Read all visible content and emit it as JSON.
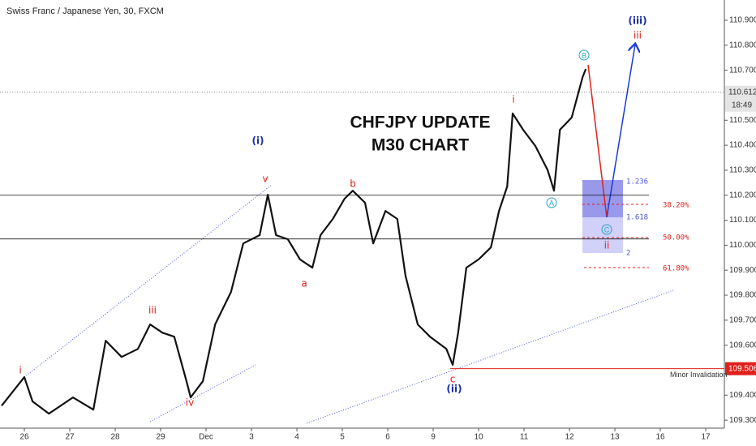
{
  "chart_data": {
    "type": "line",
    "title": "Swiss Franc / Japanese Yen, 30, FXCM",
    "headline": [
      "CHFJPY UPDATE",
      "M30 CHART"
    ],
    "color": "#111111",
    "x": [
      -0.5,
      0,
      0.18,
      0.54,
      1.07,
      1.52,
      1.79,
      2.14,
      2.5,
      2.77,
      3.04,
      3.3,
      3.57,
      3.66,
      3.93,
      4.2,
      4.55,
      4.82,
      5.18,
      5.36,
      5.54,
      5.8,
      6.07,
      6.34,
      6.52,
      6.79,
      7.05,
      7.23,
      7.5,
      7.68,
      7.95,
      8.21,
      8.39,
      8.66,
      8.93,
      9.29,
      9.43,
      9.55,
      9.73,
      10,
      10.27,
      10.45,
      10.63,
      10.75,
      10.98,
      11.25,
      11.52,
      11.66,
      11.79,
      12.05,
      12.29,
      12.36
    ],
    "values": [
      109.358,
      109.472,
      109.375,
      109.326,
      109.391,
      109.342,
      109.618,
      109.553,
      109.585,
      109.683,
      109.65,
      109.634,
      109.456,
      109.391,
      109.456,
      109.683,
      109.813,
      110.007,
      110.04,
      110.202,
      110.04,
      110.024,
      109.943,
      109.91,
      110.04,
      110.105,
      110.186,
      110.218,
      110.17,
      110.007,
      110.137,
      110.105,
      109.878,
      109.683,
      109.634,
      109.585,
      109.521,
      109.65,
      109.91,
      109.943,
      109.991,
      110.137,
      110.235,
      110.527,
      110.462,
      110.397,
      110.3,
      110.218,
      110.462,
      110.511,
      110.673,
      110.705
    ],
    "xlim": [
      -0.536,
      15.41
    ],
    "xticks": [
      {
        "value": 0,
        "label": "26"
      },
      {
        "value": 1,
        "label": "27"
      },
      {
        "value": 2,
        "label": "28"
      },
      {
        "value": 3,
        "label": "29"
      },
      {
        "value": 4,
        "label": "Dec"
      },
      {
        "value": 5,
        "label": "3"
      },
      {
        "value": 6,
        "label": "4"
      },
      {
        "value": 7,
        "label": "5"
      },
      {
        "value": 8,
        "label": "6"
      },
      {
        "value": 9,
        "label": "9"
      },
      {
        "value": 10,
        "label": "10"
      },
      {
        "value": 11,
        "label": "11"
      },
      {
        "value": 12,
        "label": "12"
      },
      {
        "value": 13,
        "label": "13"
      },
      {
        "value": 14,
        "label": "16"
      },
      {
        "value": 15,
        "label": "17"
      }
    ],
    "ylim": [
      109.268,
      110.981
    ],
    "yticks": [
      {
        "value": 110.9,
        "label": "110.900"
      },
      {
        "value": 110.8,
        "label": "110.800"
      },
      {
        "value": 110.7,
        "label": "110.700"
      },
      {
        "value": 110.5,
        "label": "110.500"
      },
      {
        "value": 110.4,
        "label": "110.400"
      },
      {
        "value": 110.3,
        "label": "110.300"
      },
      {
        "value": 110.2,
        "label": "110.200"
      },
      {
        "value": 110.1,
        "label": "110.100"
      },
      {
        "value": 110.0,
        "label": "110.000"
      },
      {
        "value": 109.9,
        "label": "109.900"
      },
      {
        "value": 109.8,
        "label": "109.800"
      },
      {
        "value": 109.7,
        "label": "109.700"
      },
      {
        "value": 109.6,
        "label": "109.600"
      },
      {
        "value": 109.4,
        "label": "109.400"
      },
      {
        "value": 109.3,
        "label": "109.300"
      }
    ],
    "grid": false,
    "levels": [
      110.2,
      110.025
    ],
    "last_price": {
      "value": 110.612,
      "label": "110.612"
    },
    "countdown": "18:49",
    "invalidation": {
      "value": 109.506,
      "label": "109.506",
      "text": "Minor Invalidation"
    },
    "annotations": [
      "(iii)",
      "iii",
      "B",
      "i",
      "(i)",
      "v",
      "b",
      "iii",
      "a",
      "i",
      "iv",
      "c",
      "(ii)",
      "A",
      "C",
      "ii"
    ],
    "fib_labels": [
      "1.236",
      "1.618",
      "2",
      "38.20%",
      "50.00%",
      "61.80%"
    ]
  }
}
